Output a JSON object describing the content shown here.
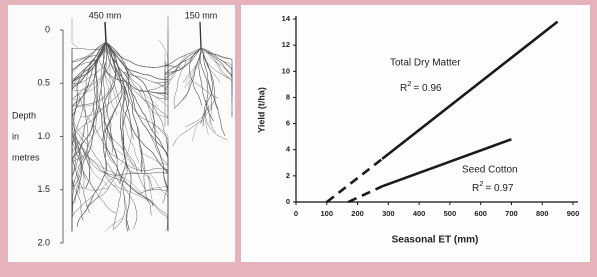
{
  "chart_data": {
    "type": "line",
    "xlabel": "Seasonal ET (mm)",
    "ylabel": "Yield (t/ha)",
    "xlim": [
      0,
      900
    ],
    "xticks": [
      0,
      100,
      200,
      300,
      400,
      500,
      600,
      700,
      800,
      900
    ],
    "ylim": [
      0,
      14
    ],
    "yticks": [
      0,
      2,
      4,
      6,
      8,
      10,
      12,
      14
    ],
    "grid": false,
    "series": [
      {
        "name": "Total Dry Matter",
        "color": "#1a1a1a",
        "r2": {
          "base": "R",
          "exp": "2",
          "rest": "= 0.96"
        },
        "segments": [
          {
            "style": "dashed",
            "x": [
              100,
              280
            ],
            "values": [
              0,
              3.3
            ]
          },
          {
            "style": "solid",
            "x": [
              280,
              850
            ],
            "values": [
              3.3,
              13.8
            ]
          }
        ]
      },
      {
        "name": "Seed Cotton",
        "color": "#1a1a1a",
        "r2": {
          "base": "R",
          "exp": "2",
          "rest": "= 0.97"
        },
        "segments": [
          {
            "style": "dashed",
            "x": [
              170,
              280
            ],
            "values": [
              0,
              1.2
            ]
          },
          {
            "style": "solid",
            "x": [
              280,
              700
            ],
            "values": [
              1.2,
              4.8
            ]
          }
        ]
      }
    ]
  },
  "root_figure": {
    "columns": [
      "450 mm",
      "150 mm"
    ],
    "ylabel": [
      "Depth",
      "in",
      "metres"
    ],
    "ylim": [
      0,
      2
    ],
    "yticks": [
      0,
      0.5,
      {
        "value": 1,
        "label": "1.0"
      },
      1.5,
      {
        "value": 2,
        "label": "2.0"
      }
    ]
  }
}
